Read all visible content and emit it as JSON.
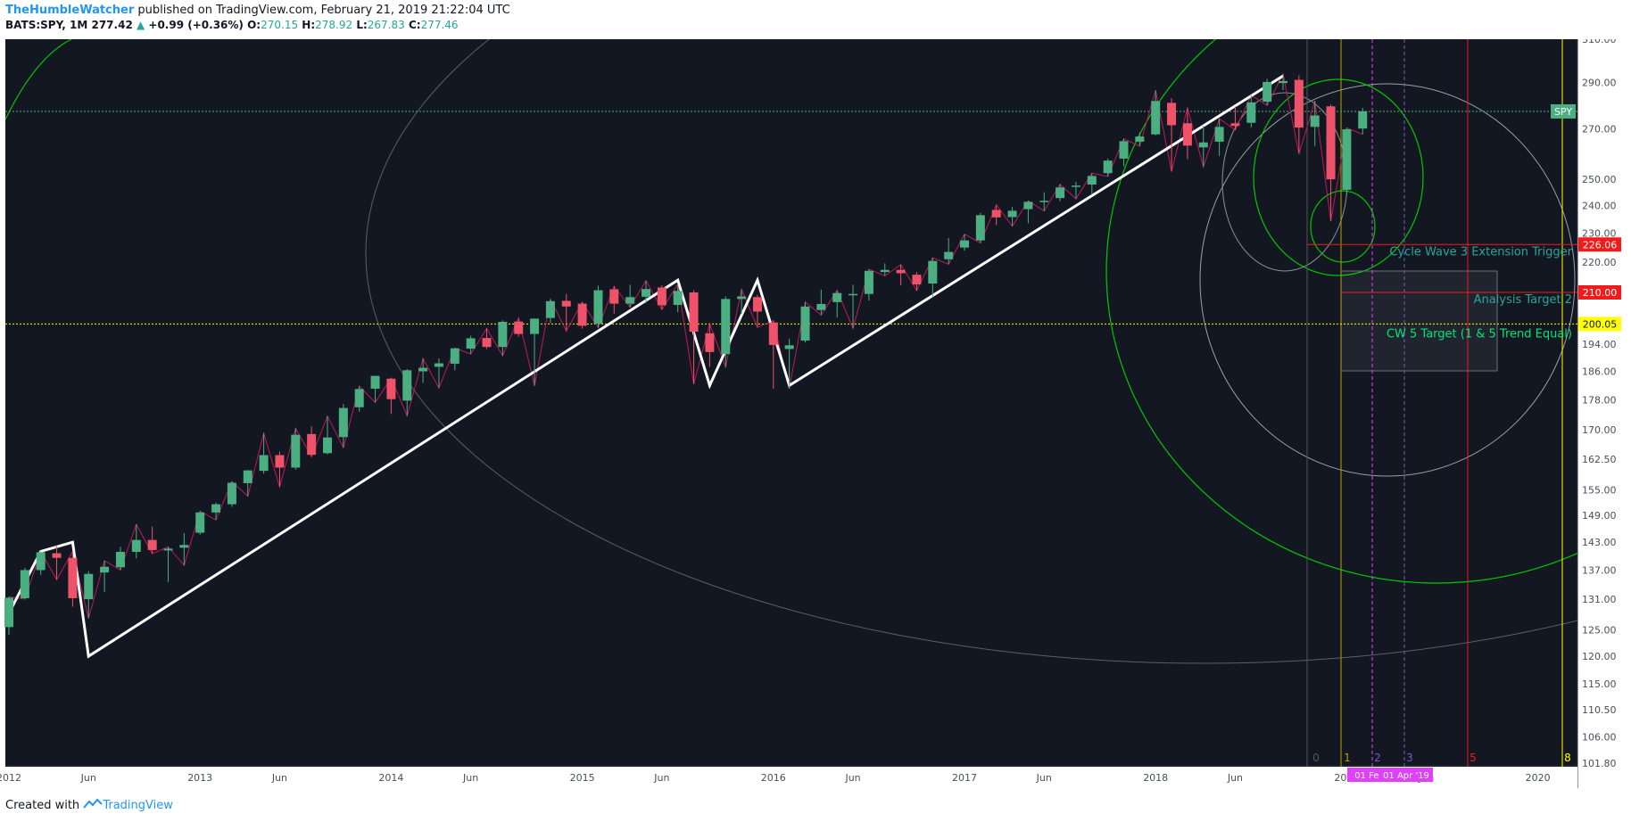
{
  "header": {
    "author": "TheHumbleWatcher",
    "published": "published on TradingView.com, February 21, 2019 21:22:04 UTC",
    "symbol": "BATS:SPY, 1M",
    "last": "277.42",
    "change": "+0.99 (+0.36%)",
    "o_label": "O:",
    "o_value": "270.15",
    "h_label": "H:",
    "h_value": "278.92",
    "l_label": "L:",
    "l_value": "267.83",
    "c_label": "C:",
    "c_value": "277.46"
  },
  "footer": {
    "created_with": "Created with",
    "brand": "TradingView"
  },
  "colors": {
    "background": "#131722",
    "up": "#4caf82",
    "down": "#ef5369",
    "panel": "#ffffff"
  },
  "chart_data": {
    "type": "candlestick",
    "symbol": "SPY",
    "scale": "log",
    "ylim": [
      101.8,
      310.0
    ],
    "grid": false,
    "x_tick_labels": [
      "2012",
      "Jun",
      "2013",
      "Jun",
      "2014",
      "Jun",
      "2015",
      "Jun",
      "2016",
      "Jun",
      "2017",
      "Jun",
      "2018",
      "Jun",
      "2019",
      "Jun",
      "2020"
    ],
    "y_tick_labels": [
      "310.00",
      "290.00",
      "270.00",
      "250.00",
      "240.00",
      "230.00",
      "220.00",
      "210.00",
      "200.00",
      "194.00",
      "186.00",
      "178.00",
      "170.00",
      "162.50",
      "155.00",
      "149.00",
      "143.00",
      "137.00",
      "131.00",
      "125.00",
      "120.00",
      "115.00",
      "110.50",
      "106.00",
      "101.80"
    ],
    "price_badges": [
      {
        "text": "SPY",
        "value": 277.42,
        "color": "#4caf82"
      },
      {
        "text": "226.06",
        "value": 226.06,
        "color": "#f21b1b"
      },
      {
        "text": "210.00",
        "value": 210.0,
        "color": "#f21b1b"
      },
      {
        "text": "200.05",
        "value": 200.05,
        "color": "#ffff00"
      }
    ],
    "annotations": [
      "Cycle Wave 3 Extension Trigger",
      "Analysis Target 2",
      "CW 5 Target (1 & 5 Trend Equal)"
    ],
    "cycle_labels": [
      "0",
      "1",
      "2",
      "3",
      "5",
      "8"
    ],
    "date_labels": [
      "01 Feb",
      "01 Apr '19"
    ],
    "candles": [
      {
        "t": "2012-01",
        "o": 125.5,
        "h": 131.5,
        "l": 124.0,
        "c": 131.3
      },
      {
        "t": "2012-02",
        "o": 131.2,
        "h": 137.5,
        "l": 131.0,
        "c": 137.0
      },
      {
        "t": "2012-03",
        "o": 137.0,
        "h": 141.0,
        "l": 136.0,
        "c": 140.8
      },
      {
        "t": "2012-04",
        "o": 140.6,
        "h": 142.2,
        "l": 135.0,
        "c": 139.6
      },
      {
        "t": "2012-05",
        "o": 139.6,
        "h": 141.0,
        "l": 129.5,
        "c": 131.2
      },
      {
        "t": "2012-06",
        "o": 131.0,
        "h": 136.8,
        "l": 127.2,
        "c": 136.2
      },
      {
        "t": "2012-07",
        "o": 136.5,
        "h": 139.0,
        "l": 132.5,
        "c": 137.7
      },
      {
        "t": "2012-08",
        "o": 137.6,
        "h": 142.0,
        "l": 137.0,
        "c": 140.9
      },
      {
        "t": "2012-09",
        "o": 140.9,
        "h": 147.0,
        "l": 139.5,
        "c": 143.5
      },
      {
        "t": "2012-10",
        "o": 143.5,
        "h": 146.5,
        "l": 140.5,
        "c": 141.3
      },
      {
        "t": "2012-11",
        "o": 141.2,
        "h": 142.0,
        "l": 134.5,
        "c": 141.6
      },
      {
        "t": "2012-12",
        "o": 141.8,
        "h": 145.0,
        "l": 138.0,
        "c": 142.4
      },
      {
        "t": "2013-01",
        "o": 145.1,
        "h": 150.0,
        "l": 144.7,
        "c": 149.7
      },
      {
        "t": "2013-02",
        "o": 149.7,
        "h": 152.0,
        "l": 148.0,
        "c": 151.6
      },
      {
        "t": "2013-03",
        "o": 151.6,
        "h": 157.0,
        "l": 151.0,
        "c": 156.7
      },
      {
        "t": "2013-04",
        "o": 156.6,
        "h": 159.8,
        "l": 153.5,
        "c": 159.7
      },
      {
        "t": "2013-05",
        "o": 159.6,
        "h": 169.1,
        "l": 158.9,
        "c": 163.5
      },
      {
        "t": "2013-06",
        "o": 163.5,
        "h": 164.4,
        "l": 155.7,
        "c": 160.4
      },
      {
        "t": "2013-07",
        "o": 160.4,
        "h": 170.4,
        "l": 159.9,
        "c": 168.7
      },
      {
        "t": "2013-08",
        "o": 168.9,
        "h": 170.9,
        "l": 163.1,
        "c": 163.6
      },
      {
        "t": "2013-09",
        "o": 164.0,
        "h": 173.6,
        "l": 163.7,
        "c": 168.0
      },
      {
        "t": "2013-10",
        "o": 168.1,
        "h": 176.9,
        "l": 165.4,
        "c": 175.8
      },
      {
        "t": "2013-11",
        "o": 176.0,
        "h": 181.8,
        "l": 174.8,
        "c": 181.0
      },
      {
        "t": "2013-12",
        "o": 181.1,
        "h": 184.7,
        "l": 177.3,
        "c": 184.7
      },
      {
        "t": "2014-01",
        "o": 183.9,
        "h": 184.1,
        "l": 174.2,
        "c": 178.2
      },
      {
        "t": "2014-02",
        "o": 177.8,
        "h": 186.7,
        "l": 173.7,
        "c": 186.3
      },
      {
        "t": "2014-03",
        "o": 186.0,
        "h": 189.7,
        "l": 182.7,
        "c": 187.0
      },
      {
        "t": "2014-04",
        "o": 187.3,
        "h": 189.7,
        "l": 181.3,
        "c": 188.3
      },
      {
        "t": "2014-05",
        "o": 188.2,
        "h": 192.8,
        "l": 186.3,
        "c": 192.7
      },
      {
        "t": "2014-06",
        "o": 192.6,
        "h": 196.5,
        "l": 191.0,
        "c": 195.7
      },
      {
        "t": "2014-07",
        "o": 195.8,
        "h": 198.7,
        "l": 192.5,
        "c": 193.1
      },
      {
        "t": "2014-08",
        "o": 193.1,
        "h": 201.2,
        "l": 190.5,
        "c": 200.7
      },
      {
        "t": "2014-09",
        "o": 200.8,
        "h": 201.9,
        "l": 196.2,
        "c": 197.0
      },
      {
        "t": "2014-10",
        "o": 197.0,
        "h": 201.4,
        "l": 181.9,
        "c": 201.7
      },
      {
        "t": "2014-11",
        "o": 201.9,
        "h": 207.8,
        "l": 200.3,
        "c": 207.2
      },
      {
        "t": "2014-12",
        "o": 207.3,
        "h": 209.5,
        "l": 197.9,
        "c": 205.5
      },
      {
        "t": "2015-01",
        "o": 206.4,
        "h": 206.9,
        "l": 198.6,
        "c": 199.5
      },
      {
        "t": "2015-02",
        "o": 200.1,
        "h": 212.2,
        "l": 198.9,
        "c": 210.7
      },
      {
        "t": "2015-03",
        "o": 211.0,
        "h": 212.0,
        "l": 203.3,
        "c": 206.4
      },
      {
        "t": "2015-04",
        "o": 206.4,
        "h": 212.5,
        "l": 205.3,
        "c": 208.5
      },
      {
        "t": "2015-05",
        "o": 208.6,
        "h": 213.8,
        "l": 206.6,
        "c": 211.1
      },
      {
        "t": "2015-06",
        "o": 211.6,
        "h": 212.3,
        "l": 204.5,
        "c": 205.9
      },
      {
        "t": "2015-07",
        "o": 206.0,
        "h": 212.7,
        "l": 203.7,
        "c": 210.5
      },
      {
        "t": "2015-08",
        "o": 210.0,
        "h": 210.7,
        "l": 182.4,
        "c": 197.7
      },
      {
        "t": "2015-09",
        "o": 197.2,
        "h": 200.2,
        "l": 187.3,
        "c": 191.6
      },
      {
        "t": "2015-10",
        "o": 191.0,
        "h": 208.7,
        "l": 187.2,
        "c": 207.9
      },
      {
        "t": "2015-11",
        "o": 207.9,
        "h": 211.0,
        "l": 203.1,
        "c": 208.7
      },
      {
        "t": "2015-12",
        "o": 208.5,
        "h": 209.2,
        "l": 199.0,
        "c": 203.9
      },
      {
        "t": "2016-01",
        "o": 200.5,
        "h": 201.1,
        "l": 181.1,
        "c": 193.7
      },
      {
        "t": "2016-02",
        "o": 192.5,
        "h": 195.6,
        "l": 181.1,
        "c": 193.6
      },
      {
        "t": "2016-03",
        "o": 195.0,
        "h": 206.9,
        "l": 194.4,
        "c": 205.5
      },
      {
        "t": "2016-04",
        "o": 204.4,
        "h": 210.9,
        "l": 202.8,
        "c": 206.3
      },
      {
        "t": "2016-05",
        "o": 206.9,
        "h": 210.7,
        "l": 202.0,
        "c": 209.8
      },
      {
        "t": "2016-06",
        "o": 209.1,
        "h": 212.5,
        "l": 198.7,
        "c": 209.5
      },
      {
        "t": "2016-07",
        "o": 209.5,
        "h": 217.6,
        "l": 207.4,
        "c": 217.1
      },
      {
        "t": "2016-08",
        "o": 216.7,
        "h": 219.6,
        "l": 215.4,
        "c": 217.4
      },
      {
        "t": "2016-09",
        "o": 217.4,
        "h": 219.2,
        "l": 212.3,
        "c": 216.3
      },
      {
        "t": "2016-10",
        "o": 215.8,
        "h": 216.7,
        "l": 210.6,
        "c": 212.6
      },
      {
        "t": "2016-11",
        "o": 212.9,
        "h": 221.5,
        "l": 208.4,
        "c": 220.4
      },
      {
        "t": "2016-12",
        "o": 221.0,
        "h": 228.3,
        "l": 219.3,
        "c": 223.5
      },
      {
        "t": "2017-01",
        "o": 225.0,
        "h": 229.7,
        "l": 223.9,
        "c": 227.5
      },
      {
        "t": "2017-02",
        "o": 227.5,
        "h": 237.3,
        "l": 226.6,
        "c": 236.5
      },
      {
        "t": "2017-03",
        "o": 238.4,
        "h": 240.3,
        "l": 232.9,
        "c": 235.7
      },
      {
        "t": "2017-04",
        "o": 235.8,
        "h": 239.5,
        "l": 232.5,
        "c": 238.1
      },
      {
        "t": "2017-05",
        "o": 238.7,
        "h": 241.8,
        "l": 233.6,
        "c": 241.4
      },
      {
        "t": "2017-06",
        "o": 241.4,
        "h": 245.0,
        "l": 238.0,
        "c": 241.8
      },
      {
        "t": "2017-07",
        "o": 242.8,
        "h": 248.0,
        "l": 241.6,
        "c": 246.8
      },
      {
        "t": "2017-08",
        "o": 247.5,
        "h": 248.9,
        "l": 242.5,
        "c": 247.5
      },
      {
        "t": "2017-09",
        "o": 247.9,
        "h": 252.3,
        "l": 244.0,
        "c": 251.2
      },
      {
        "t": "2017-10",
        "o": 252.3,
        "h": 258.0,
        "l": 251.0,
        "c": 257.2
      },
      {
        "t": "2017-11",
        "o": 258.0,
        "h": 266.0,
        "l": 255.0,
        "c": 265.0
      },
      {
        "t": "2017-12",
        "o": 264.8,
        "h": 268.6,
        "l": 263.0,
        "c": 266.9
      },
      {
        "t": "2018-01",
        "o": 267.8,
        "h": 286.6,
        "l": 267.4,
        "c": 281.9
      },
      {
        "t": "2018-02",
        "o": 281.1,
        "h": 283.1,
        "l": 252.9,
        "c": 271.6
      },
      {
        "t": "2018-03",
        "o": 272.4,
        "h": 278.9,
        "l": 257.8,
        "c": 263.2
      },
      {
        "t": "2018-04",
        "o": 262.5,
        "h": 271.3,
        "l": 254.7,
        "c": 264.5
      },
      {
        "t": "2018-05",
        "o": 264.8,
        "h": 274.3,
        "l": 259.1,
        "c": 270.9
      },
      {
        "t": "2018-06",
        "o": 272.4,
        "h": 279.5,
        "l": 269.6,
        "c": 271.3
      },
      {
        "t": "2018-07",
        "o": 272.6,
        "h": 284.4,
        "l": 270.7,
        "c": 281.3
      },
      {
        "t": "2018-08",
        "o": 281.6,
        "h": 291.7,
        "l": 280.0,
        "c": 290.3
      },
      {
        "t": "2018-09",
        "o": 289.8,
        "h": 293.9,
        "l": 286.7,
        "c": 290.7
      },
      {
        "t": "2018-10",
        "o": 291.2,
        "h": 293.2,
        "l": 259.9,
        "c": 270.6
      },
      {
        "t": "2018-11",
        "o": 270.9,
        "h": 281.9,
        "l": 263.0,
        "c": 275.7
      },
      {
        "t": "2018-12",
        "o": 279.6,
        "h": 280.4,
        "l": 234.3,
        "c": 249.9
      },
      {
        "t": "2019-01",
        "o": 245.9,
        "h": 270.5,
        "l": 244.0,
        "c": 269.9
      },
      {
        "t": "2019-02",
        "o": 270.2,
        "h": 278.9,
        "l": 267.8,
        "c": 277.5
      }
    ]
  }
}
